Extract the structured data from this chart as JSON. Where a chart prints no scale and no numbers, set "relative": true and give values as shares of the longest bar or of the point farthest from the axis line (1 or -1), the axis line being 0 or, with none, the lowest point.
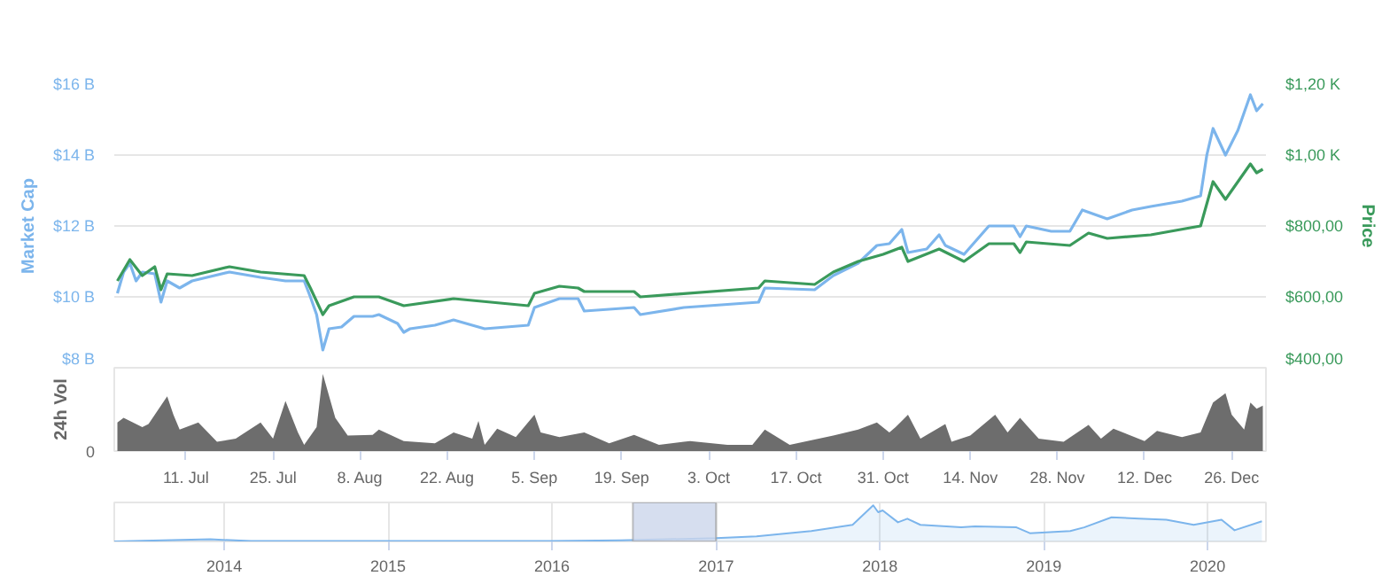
{
  "chart_data": [
    {
      "type": "line",
      "ylabel": "Market Cap",
      "y2label": "Price",
      "xlim": [
        "2016-06-29T12:00",
        "2016-12-31T12:00"
      ],
      "ylim": [
        8,
        16
      ],
      "yticks": [
        {
          "value": 8,
          "label": "$8 B"
        },
        {
          "value": 10,
          "label": "$10 B"
        },
        {
          "value": 12,
          "label": "$12 B"
        },
        {
          "value": 14,
          "label": "$14 B"
        },
        {
          "value": 16,
          "label": "$16 B"
        }
      ],
      "y2lim": [
        400,
        1200
      ],
      "y2ticks": [
        {
          "value": 400,
          "label": "$400,00"
        },
        {
          "value": 600,
          "label": "$600,00"
        },
        {
          "value": 800,
          "label": "$800,00"
        },
        {
          "value": 1000,
          "label": "$1,00 K"
        },
        {
          "value": 1200,
          "label": "$1,20 K"
        }
      ],
      "grid": "y",
      "tick_labels": "y",
      "series": [
        {
          "color": "#7cb5ec",
          "x": [
            "2016-06-30",
            "2016-07-01",
            "2016-07-02",
            "2016-07-03",
            "2016-07-04",
            "2016-07-06",
            "2016-07-07",
            "2016-07-08",
            "2016-07-10",
            "2016-07-12",
            "2016-07-18",
            "2016-07-23",
            "2016-07-27",
            "2016-07-30",
            "2016-07-31",
            "2016-08-01",
            "2016-08-02",
            "2016-08-03",
            "2016-08-05",
            "2016-08-07",
            "2016-08-10",
            "2016-08-11",
            "2016-08-14",
            "2016-08-15",
            "2016-08-16",
            "2016-08-20",
            "2016-08-23",
            "2016-08-28",
            "2016-09-04",
            "2016-09-05",
            "2016-09-09",
            "2016-09-12",
            "2016-09-13",
            "2016-09-21",
            "2016-09-22",
            "2016-09-29",
            "2016-10-11",
            "2016-10-12",
            "2016-10-20",
            "2016-10-23",
            "2016-10-27",
            "2016-10-30",
            "2016-11-01",
            "2016-11-03",
            "2016-11-04",
            "2016-11-07",
            "2016-11-09",
            "2016-11-10",
            "2016-11-13",
            "2016-11-17",
            "2016-11-21",
            "2016-11-22",
            "2016-11-23",
            "2016-11-27",
            "2016-11-30",
            "2016-12-02",
            "2016-12-06",
            "2016-12-10",
            "2016-12-13",
            "2016-12-18",
            "2016-12-21",
            "2016-12-22",
            "2016-12-23",
            "2016-12-25",
            "2016-12-27",
            "2016-12-29",
            "2016-12-30",
            "2016-12-31"
          ],
          "values": [
            10.1,
            10.7,
            10.95,
            10.45,
            10.7,
            10.65,
            9.85,
            10.45,
            10.25,
            10.45,
            10.7,
            10.55,
            10.45,
            10.45,
            10.0,
            9.5,
            8.5,
            9.1,
            9.15,
            9.45,
            9.45,
            9.5,
            9.25,
            9.0,
            9.1,
            9.2,
            9.35,
            9.1,
            9.2,
            9.7,
            9.95,
            9.95,
            9.6,
            9.7,
            9.5,
            9.7,
            9.85,
            10.25,
            10.2,
            10.6,
            10.95,
            11.45,
            11.5,
            11.9,
            11.25,
            11.35,
            11.75,
            11.45,
            11.2,
            12.0,
            12.0,
            11.7,
            12.0,
            11.85,
            11.85,
            12.45,
            12.2,
            12.45,
            12.55,
            12.7,
            12.85,
            14.0,
            14.75,
            14.0,
            14.7,
            15.7,
            15.25,
            15.45
          ]
        },
        {
          "color": "#3a9a5b",
          "axis": "y2",
          "x": [
            "2016-06-30",
            "2016-07-02",
            "2016-07-04",
            "2016-07-06",
            "2016-07-07",
            "2016-07-08",
            "2016-07-12",
            "2016-07-18",
            "2016-07-23",
            "2016-07-30",
            "2016-07-31",
            "2016-08-02",
            "2016-08-03",
            "2016-08-07",
            "2016-08-11",
            "2016-08-15",
            "2016-08-23",
            "2016-09-04",
            "2016-09-05",
            "2016-09-09",
            "2016-09-12",
            "2016-09-13",
            "2016-09-21",
            "2016-09-22",
            "2016-10-11",
            "2016-10-12",
            "2016-10-20",
            "2016-10-23",
            "2016-10-27",
            "2016-10-31",
            "2016-11-03",
            "2016-11-04",
            "2016-11-09",
            "2016-11-13",
            "2016-11-17",
            "2016-11-21",
            "2016-11-22",
            "2016-11-23",
            "2016-11-30",
            "2016-12-03",
            "2016-12-06",
            "2016-12-13",
            "2016-12-21",
            "2016-12-23",
            "2016-12-25",
            "2016-12-27",
            "2016-12-29",
            "2016-12-30",
            "2016-12-31"
          ],
          "values": [
            645,
            705,
            660,
            685,
            620,
            665,
            660,
            685,
            670,
            660,
            625,
            550,
            575,
            600,
            600,
            575,
            595,
            575,
            610,
            630,
            625,
            615,
            615,
            600,
            625,
            645,
            635,
            670,
            700,
            720,
            740,
            700,
            735,
            700,
            750,
            750,
            725,
            755,
            745,
            780,
            765,
            775,
            800,
            925,
            875,
            925,
            975,
            950,
            960
          ]
        }
      ]
    },
    {
      "type": "area",
      "ylabel": "24h Vol",
      "relative": true,
      "annotations": [
        "0"
      ],
      "color": "#6d6d6d",
      "xlim": [
        "2016-06-29T12:00",
        "2016-12-31T12:00"
      ],
      "xticks": [
        {
          "value": "2016-07-11",
          "label": "11. Jul"
        },
        {
          "value": "2016-07-25",
          "label": "25. Jul"
        },
        {
          "value": "2016-08-08",
          "label": "8. Aug"
        },
        {
          "value": "2016-08-22",
          "label": "22. Aug"
        },
        {
          "value": "2016-09-05",
          "label": "5. Sep"
        },
        {
          "value": "2016-09-19",
          "label": "19. Sep"
        },
        {
          "value": "2016-10-03",
          "label": "3. Oct"
        },
        {
          "value": "2016-10-17",
          "label": "17. Oct"
        },
        {
          "value": "2016-10-31",
          "label": "31. Oct"
        },
        {
          "value": "2016-11-14",
          "label": "14. Nov"
        },
        {
          "value": "2016-11-28",
          "label": "28. Nov"
        },
        {
          "value": "2016-12-12",
          "label": "12. Dec"
        },
        {
          "value": "2016-12-26",
          "label": "26. Dec"
        }
      ],
      "x": [
        "2016-06-30",
        "2016-07-01",
        "2016-07-04",
        "2016-07-05",
        "2016-07-08",
        "2016-07-09",
        "2016-07-10",
        "2016-07-13",
        "2016-07-16",
        "2016-07-19",
        "2016-07-23",
        "2016-07-25",
        "2016-07-27",
        "2016-07-29",
        "2016-07-30",
        "2016-08-01",
        "2016-08-02",
        "2016-08-04",
        "2016-08-06",
        "2016-08-10",
        "2016-08-11",
        "2016-08-15",
        "2016-08-20",
        "2016-08-23",
        "2016-08-26",
        "2016-08-27",
        "2016-08-28",
        "2016-08-30",
        "2016-09-02",
        "2016-09-05",
        "2016-09-06",
        "2016-09-09",
        "2016-09-13",
        "2016-09-17",
        "2016-09-21",
        "2016-09-25",
        "2016-09-29",
        "2016-09-30",
        "2016-10-06",
        "2016-10-10",
        "2016-10-12",
        "2016-10-16",
        "2016-10-23",
        "2016-10-27",
        "2016-10-30",
        "2016-11-01",
        "2016-11-02",
        "2016-11-04",
        "2016-11-06",
        "2016-11-10",
        "2016-11-11",
        "2016-11-14",
        "2016-11-18",
        "2016-11-20",
        "2016-11-22",
        "2016-11-23",
        "2016-11-25",
        "2016-11-29",
        "2016-12-03",
        "2016-12-05",
        "2016-12-07",
        "2016-12-12",
        "2016-12-14",
        "2016-12-18",
        "2016-12-21",
        "2016-12-23",
        "2016-12-25",
        "2016-12-26",
        "2016-12-28",
        "2016-12-29",
        "2016-12-30",
        "2016-12-31"
      ],
      "values": [
        0.37,
        0.43,
        0.31,
        0.35,
        0.71,
        0.47,
        0.28,
        0.37,
        0.12,
        0.16,
        0.37,
        0.16,
        0.65,
        0.24,
        0.08,
        0.31,
        1.0,
        0.43,
        0.2,
        0.21,
        0.28,
        0.13,
        0.1,
        0.24,
        0.16,
        0.39,
        0.08,
        0.29,
        0.18,
        0.47,
        0.24,
        0.18,
        0.24,
        0.1,
        0.21,
        0.08,
        0.12,
        0.13,
        0.08,
        0.08,
        0.28,
        0.08,
        0.2,
        0.28,
        0.37,
        0.24,
        0.31,
        0.47,
        0.16,
        0.35,
        0.12,
        0.2,
        0.47,
        0.24,
        0.43,
        0.34,
        0.16,
        0.12,
        0.34,
        0.16,
        0.29,
        0.13,
        0.26,
        0.18,
        0.24,
        0.63,
        0.75,
        0.47,
        0.28,
        0.63,
        0.55,
        0.59
      ]
    },
    {
      "type": "area",
      "relative": true,
      "grid": "x",
      "color": "#7cb5ec",
      "xlim": [
        "2013-05",
        "2020-05-10"
      ],
      "xticks": [
        {
          "value": "2014",
          "label": "2014"
        },
        {
          "value": "2015",
          "label": "2015"
        },
        {
          "value": "2016",
          "label": "2016"
        },
        {
          "value": "2017",
          "label": "2017"
        },
        {
          "value": "2018",
          "label": "2018"
        },
        {
          "value": "2019",
          "label": "2019"
        },
        {
          "value": "2020",
          "label": "2020"
        }
      ],
      "bands": [
        {
          "axis": "x",
          "from": "2016-06-29T12:00",
          "to": "2016-12-31T12:00",
          "color": "#ccd6eb"
        }
      ],
      "x": [
        "2013-05",
        "2013-12",
        "2014-03",
        "2015-03",
        "2016-01",
        "2016-06",
        "2017-01",
        "2017-04",
        "2017-08",
        "2017-11",
        "2017-12-17",
        "2017-12-28",
        "2018-01-07",
        "2018-02-10",
        "2018-03-03",
        "2018-04",
        "2018-07",
        "2018-08",
        "2018-11",
        "2018-12",
        "2019-03",
        "2019-04",
        "2019-06",
        "2019-08",
        "2019-10",
        "2019-12",
        "2020-02",
        "2020-03",
        "2020-05"
      ],
      "values": [
        0,
        0.06,
        0.01,
        0.01,
        0.01,
        0.03,
        0.09,
        0.14,
        0.29,
        0.46,
        1.0,
        0.81,
        0.86,
        0.53,
        0.63,
        0.46,
        0.39,
        0.42,
        0.39,
        0.23,
        0.29,
        0.39,
        0.67,
        0.63,
        0.6,
        0.46,
        0.6,
        0.31,
        0.56
      ]
    }
  ]
}
